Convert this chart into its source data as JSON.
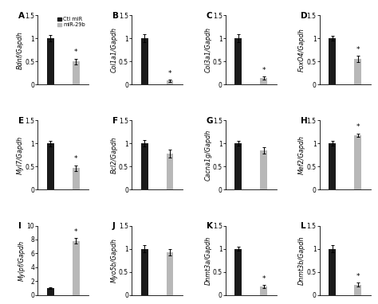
{
  "panels": [
    {
      "label": "A",
      "ylabel": "Bdnf/Gapdh",
      "ylim": [
        0,
        1.5
      ],
      "yticks": [
        0.0,
        0.5,
        1.0,
        1.5
      ],
      "black_val": 1.0,
      "black_err": 0.07,
      "gray_val": 0.5,
      "gray_err": 0.06,
      "star": true,
      "star_on": "gray",
      "row": 0,
      "col": 0
    },
    {
      "label": "B",
      "ylabel": "Col1a1/Gapdh",
      "ylim": [
        0,
        1.5
      ],
      "yticks": [
        0.0,
        0.5,
        1.0,
        1.5
      ],
      "black_val": 1.0,
      "black_err": 0.08,
      "gray_val": 0.08,
      "gray_err": 0.02,
      "star": true,
      "star_on": "gray",
      "row": 0,
      "col": 1
    },
    {
      "label": "C",
      "ylabel": "Col3a1/Gapdh",
      "ylim": [
        0,
        1.5
      ],
      "yticks": [
        0.0,
        0.5,
        1.0,
        1.5
      ],
      "black_val": 1.0,
      "black_err": 0.09,
      "gray_val": 0.14,
      "gray_err": 0.03,
      "star": true,
      "star_on": "gray",
      "row": 0,
      "col": 2
    },
    {
      "label": "D",
      "ylabel": "FoxO4/Gapdh",
      "ylim": [
        0,
        1.5
      ],
      "yticks": [
        0.0,
        0.5,
        1.0,
        1.5
      ],
      "black_val": 1.0,
      "black_err": 0.05,
      "gray_val": 0.55,
      "gray_err": 0.07,
      "star": true,
      "star_on": "gray",
      "row": 0,
      "col": 3
    },
    {
      "label": "E",
      "ylabel": "Myl7/Gapdh",
      "ylim": [
        0,
        1.5
      ],
      "yticks": [
        0.0,
        0.5,
        1.0,
        1.5
      ],
      "black_val": 1.0,
      "black_err": 0.06,
      "gray_val": 0.47,
      "gray_err": 0.06,
      "star": true,
      "star_on": "gray",
      "row": 1,
      "col": 0
    },
    {
      "label": "F",
      "ylabel": "Bcl2/Gapdh",
      "ylim": [
        0,
        1.5
      ],
      "yticks": [
        0.0,
        0.5,
        1.0,
        1.5
      ],
      "black_val": 1.0,
      "black_err": 0.07,
      "gray_val": 0.78,
      "gray_err": 0.08,
      "star": false,
      "star_on": "gray",
      "row": 1,
      "col": 1
    },
    {
      "label": "G",
      "ylabel": "Cacna1g/Gapdh",
      "ylim": [
        0,
        1.5
      ],
      "yticks": [
        0.0,
        0.5,
        1.0,
        1.5
      ],
      "black_val": 1.0,
      "black_err": 0.05,
      "gray_val": 0.85,
      "gray_err": 0.07,
      "star": false,
      "star_on": "gray",
      "row": 1,
      "col": 2
    },
    {
      "label": "H",
      "ylabel": "Mef2/Gapdh",
      "ylim": [
        0,
        1.5
      ],
      "yticks": [
        0.0,
        0.5,
        1.0,
        1.5
      ],
      "black_val": 1.0,
      "black_err": 0.05,
      "gray_val": 1.18,
      "gray_err": 0.04,
      "star": true,
      "star_on": "gray",
      "row": 1,
      "col": 3
    },
    {
      "label": "I",
      "ylabel": "Mylpf/Gapdh",
      "ylim": [
        0,
        10
      ],
      "yticks": [
        0,
        2,
        4,
        6,
        8,
        10
      ],
      "black_val": 1.0,
      "black_err": 0.12,
      "gray_val": 7.8,
      "gray_err": 0.4,
      "star": true,
      "star_on": "gray",
      "row": 2,
      "col": 0
    },
    {
      "label": "J",
      "ylabel": "Myo5b/Gapdh",
      "ylim": [
        0,
        1.5
      ],
      "yticks": [
        0.0,
        0.5,
        1.0,
        1.5
      ],
      "black_val": 1.0,
      "black_err": 0.08,
      "gray_val": 0.92,
      "gray_err": 0.07,
      "star": false,
      "star_on": "gray",
      "row": 2,
      "col": 1
    },
    {
      "label": "K",
      "ylabel": "Dnmt3a/Gapdh",
      "ylim": [
        0,
        1.5
      ],
      "yticks": [
        0.0,
        0.5,
        1.0,
        1.5
      ],
      "black_val": 1.0,
      "black_err": 0.05,
      "gray_val": 0.18,
      "gray_err": 0.03,
      "star": true,
      "star_on": "gray",
      "row": 2,
      "col": 2
    },
    {
      "label": "L",
      "ylabel": "Dnmt3b/Gapdh",
      "ylim": [
        0,
        1.5
      ],
      "yticks": [
        0.0,
        0.5,
        1.0,
        1.5
      ],
      "black_val": 1.0,
      "black_err": 0.08,
      "gray_val": 0.22,
      "gray_err": 0.04,
      "star": true,
      "star_on": "gray",
      "row": 2,
      "col": 3
    }
  ],
  "black_color": "#1a1a1a",
  "gray_color": "#b8b8b8",
  "legend_labels": [
    "Ctl miR",
    "miR-29b"
  ],
  "bar_width": 0.28,
  "fontsize_label": 5.8,
  "fontsize_tick": 5.5,
  "fontsize_panel": 7.5
}
